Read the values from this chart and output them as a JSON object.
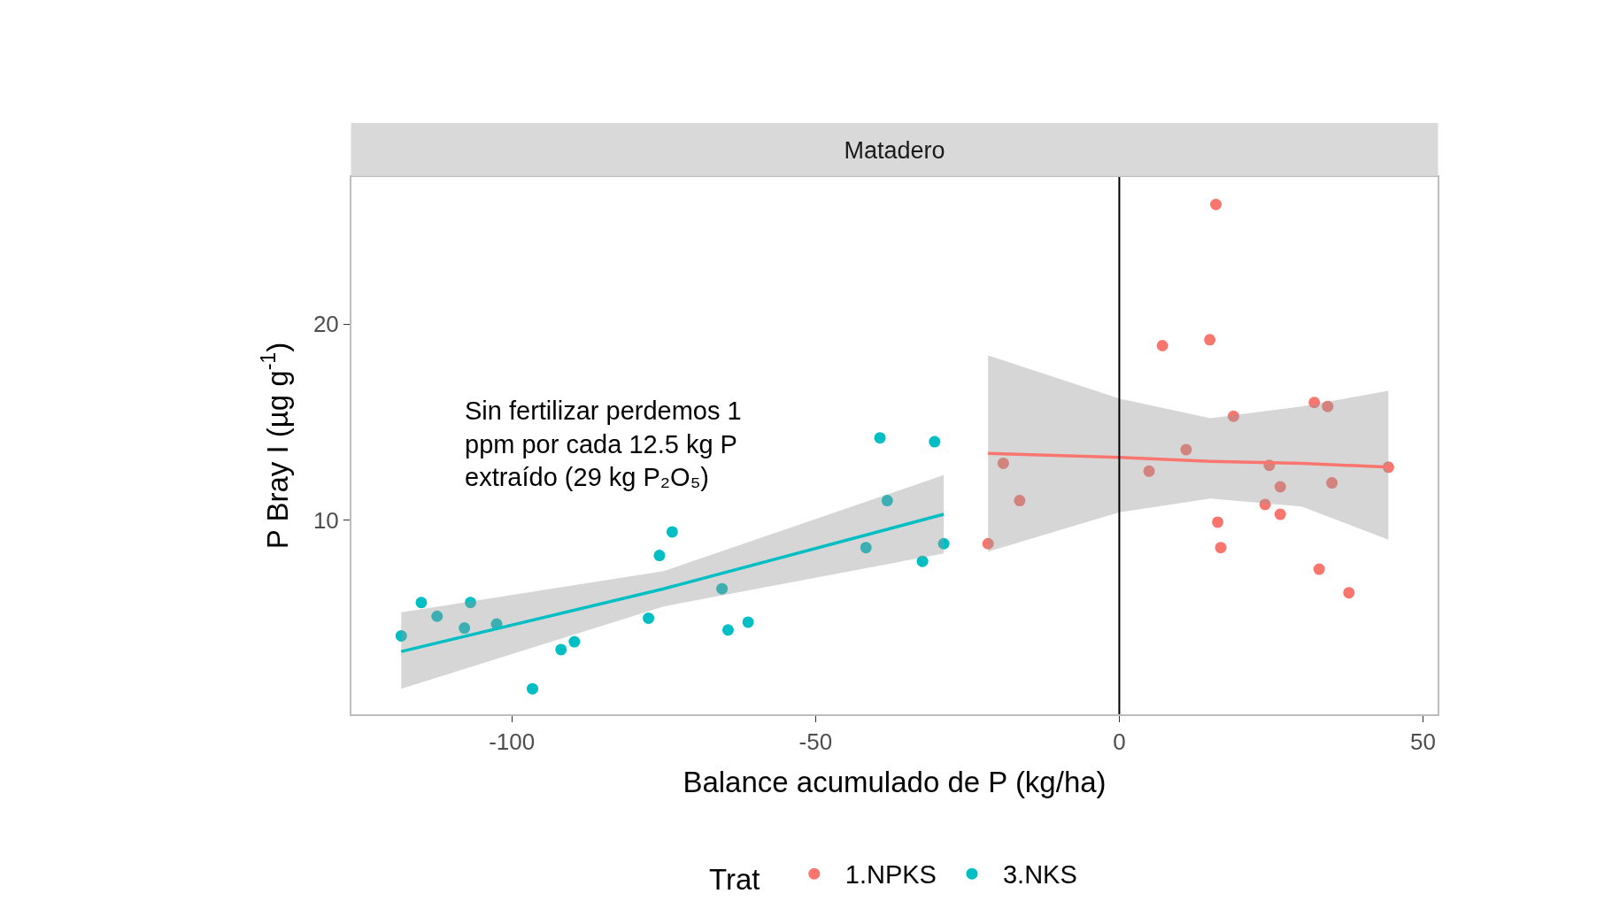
{
  "chart_data": {
    "type": "scatter",
    "title": "Matadero",
    "xlabel": "Balance acumulado de P (kg/ha)",
    "ylabel": "P Bray I (µg g$^{-1}$)",
    "legend_title": "Trat",
    "legend": "bottom",
    "grid": false,
    "xlim": [
      -126.4,
      52.4
    ],
    "ylim": [
      0.1,
      27.5
    ],
    "xticks": [
      -100,
      -50,
      0,
      50
    ],
    "yticks": [
      10,
      20
    ],
    "series": [
      {
        "name": "1.NPKS",
        "marker": "circle",
        "color": "#f8766d",
        "x": [
          -21.6,
          -19.1,
          -16.4,
          4.9,
          7.1,
          11.0,
          14.9,
          15.9,
          16.2,
          16.7,
          18.8,
          24.0,
          24.7,
          26.5,
          26.5,
          32.1,
          32.9,
          34.3,
          35.0,
          37.8,
          44.3
        ],
        "values": [
          8.8,
          12.9,
          11.0,
          12.5,
          18.9,
          13.6,
          19.2,
          26.1,
          9.9,
          8.6,
          15.3,
          10.8,
          12.8,
          11.7,
          10.3,
          16.0,
          7.5,
          15.8,
          11.9,
          6.3,
          12.7
        ]
      },
      {
        "name": "3.NKS",
        "marker": "circle",
        "color": "#00bfc4",
        "x": [
          -118.2,
          -114.9,
          -112.3,
          -107.8,
          -106.8,
          -102.5,
          -96.6,
          -91.9,
          -89.7,
          -77.5,
          -75.7,
          -73.6,
          -65.4,
          -64.4,
          -61.1,
          -41.7,
          -39.4,
          -38.2,
          -32.4,
          -30.4,
          -28.9
        ],
        "values": [
          4.1,
          5.8,
          5.1,
          4.5,
          5.8,
          4.7,
          1.4,
          3.4,
          3.8,
          5.0,
          8.2,
          9.4,
          6.5,
          4.4,
          4.8,
          8.6,
          14.2,
          11.0,
          7.9,
          14.0,
          8.8
        ]
      },
      {
        "type": "line",
        "marker": "none",
        "color": "#f8766d",
        "x": [
          -21.6,
          0,
          15,
          30,
          44.3
        ],
        "values": [
          13.4,
          13.2,
          13.0,
          12.9,
          12.7
        ],
        "lower": [
          8.4,
          10.4,
          11.1,
          10.7,
          9.0
        ],
        "upper": [
          18.4,
          16.2,
          15.2,
          15.8,
          16.6
        ]
      },
      {
        "type": "line",
        "marker": "none",
        "color": "#00bfc4",
        "x": [
          -118.2,
          -75,
          -28.9
        ],
        "values": [
          3.3,
          6.5,
          10.3
        ],
        "lower": [
          1.4,
          5.6,
          8.3
        ],
        "upper": [
          5.3,
          7.4,
          12.3
        ]
      }
    ],
    "ref_lines": [
      {
        "axis": "x",
        "value": 0,
        "color": "#000000"
      }
    ],
    "annotations": [
      "Sin fertilizar perdemos 1\nppm por cada 12.5 kg P\nextraído (29 kg P₂O₅)"
    ]
  }
}
